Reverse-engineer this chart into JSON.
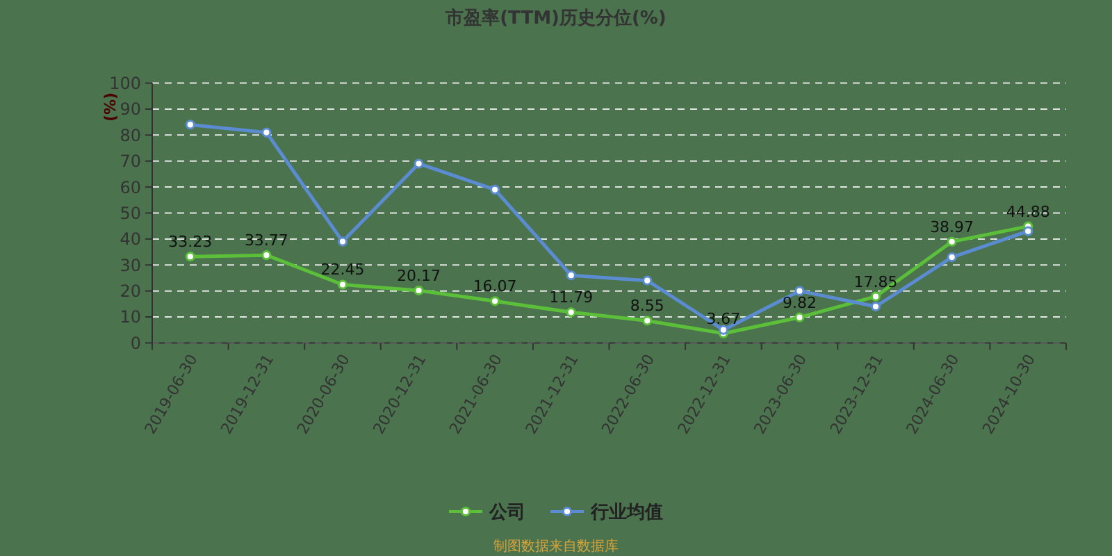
{
  "chart_data": {
    "type": "line",
    "title": "市盈率(TTM)历史分位(%)",
    "ylabel": "(%)",
    "categories": [
      "2019-06-30",
      "2019-12-31",
      "2020-06-30",
      "2020-12-31",
      "2021-06-30",
      "2021-12-31",
      "2022-06-30",
      "2022-12-31",
      "2023-06-30",
      "2023-12-31",
      "2024-06-30",
      "2024-10-30"
    ],
    "series": [
      {
        "name": "公司",
        "color": "#5bbf3a",
        "values": [
          33.23,
          33.77,
          22.45,
          20.17,
          16.07,
          11.79,
          8.55,
          3.67,
          9.82,
          17.85,
          38.97,
          44.88
        ],
        "value_labels": [
          "33.23",
          "33.77",
          "22.45",
          "20.17",
          "16.07",
          "11.79",
          "8.55",
          "3.67",
          "9.82",
          "17.85",
          "38.97",
          "44.88"
        ]
      },
      {
        "name": "行业均值",
        "color": "#5b8bd0",
        "values": [
          84,
          81,
          39,
          69,
          59,
          26,
          24,
          5,
          20,
          14,
          33,
          43
        ]
      }
    ],
    "ylim": [
      0,
      100
    ],
    "yticks": [
      0,
      10,
      20,
      30,
      40,
      50,
      60,
      70,
      80,
      90,
      100
    ],
    "grid": "y",
    "legend": "bottom",
    "marker": "circle",
    "annotations": [
      "制图数据来自数据库"
    ]
  }
}
